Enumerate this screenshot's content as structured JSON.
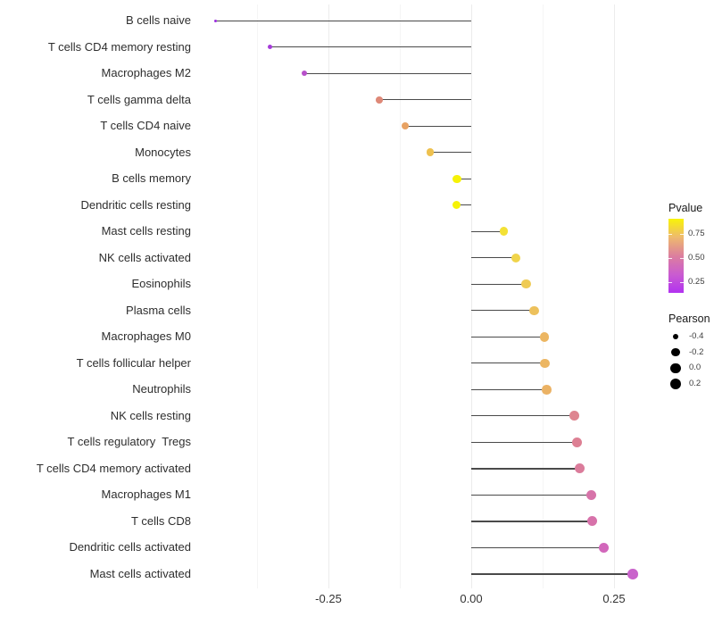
{
  "chart_data": {
    "type": "lollipop",
    "title": "",
    "xlabel": "",
    "ylabel": "",
    "x_axis": {
      "ticks": [
        -0.25,
        0,
        0.25
      ],
      "tick_labels": [
        "-0.25",
        "0.00",
        "0.25"
      ],
      "minor_ticks": [
        -0.375,
        -0.125,
        0.125
      ],
      "xlim": [
        -0.483,
        0.322
      ],
      "grid": true
    },
    "rows": [
      {
        "label": "B cells naive",
        "pearson": -0.448,
        "color": "#9c2ee0"
      },
      {
        "label": "T cells CD4 memory resting",
        "pearson": -0.352,
        "color": "#a53bd9"
      },
      {
        "label": "Macrophages M2",
        "pearson": -0.292,
        "color": "#b750ca"
      },
      {
        "label": "T cells gamma delta",
        "pearson": -0.161,
        "color": "#de8877"
      },
      {
        "label": "T cells CD4 naive",
        "pearson": -0.116,
        "color": "#e8a263"
      },
      {
        "label": "Monocytes",
        "pearson": -0.072,
        "color": "#eec14f"
      },
      {
        "label": "B cells memory",
        "pearson": -0.025,
        "color": "#f6f207"
      },
      {
        "label": "Dendritic cells resting",
        "pearson": -0.026,
        "color": "#f6f207"
      },
      {
        "label": "Mast cells resting",
        "pearson": 0.057,
        "color": "#f3e135"
      },
      {
        "label": "NK cells activated",
        "pearson": 0.078,
        "color": "#f0d44a"
      },
      {
        "label": "Eosinophils",
        "pearson": 0.096,
        "color": "#efcb54"
      },
      {
        "label": "Plasma cells",
        "pearson": 0.11,
        "color": "#edc15c"
      },
      {
        "label": "Macrophages M0",
        "pearson": 0.128,
        "color": "#ecb662"
      },
      {
        "label": "T cells follicular helper",
        "pearson": 0.129,
        "color": "#ecb662"
      },
      {
        "label": "Neutrophils",
        "pearson": 0.132,
        "color": "#ebb264"
      },
      {
        "label": "NK cells resting",
        "pearson": 0.181,
        "color": "#de8590"
      },
      {
        "label": "T cells regulatory  Tregs",
        "pearson": 0.185,
        "color": "#dd8094"
      },
      {
        "label": "T cells CD4 memory activated",
        "pearson": 0.19,
        "color": "#db7c9b"
      },
      {
        "label": "Macrophages M1",
        "pearson": 0.21,
        "color": "#d773a9"
      },
      {
        "label": "T cells CD8",
        "pearson": 0.212,
        "color": "#d772aa"
      },
      {
        "label": "Dendritic cells activated",
        "pearson": 0.232,
        "color": "#d267bb"
      },
      {
        "label": "Mast cells activated",
        "pearson": 0.283,
        "color": "#c963cb"
      }
    ],
    "legend": {
      "pvalue": {
        "title": "Pvalue",
        "tick_labels": [
          "0.75",
          "0.50",
          "0.25"
        ],
        "tick_values": [
          0.75,
          0.5,
          0.25
        ],
        "range": [
          0.135,
          0.913
        ],
        "gradient_top_to_bottom": [
          "#f9f407",
          "#eeb96e",
          "#dc7f9e",
          "#ca5cd0",
          "#b232f0"
        ]
      },
      "pearson": {
        "title": "Pearson",
        "items": [
          {
            "label": "-0.4",
            "value": -0.4
          },
          {
            "label": "-0.2",
            "value": -0.2
          },
          {
            "label": "0.0",
            "value": 0.0
          },
          {
            "label": "0.2",
            "value": 0.2
          }
        ]
      }
    }
  },
  "colors": {
    "background": "#ffffff",
    "stem": "#4a4a4a",
    "grid_major": "#ececec",
    "grid_minor": "#f5f5f5",
    "axis_text": "#333333",
    "legend_text": "#1a1a1a",
    "legend_circle": "#000000"
  }
}
